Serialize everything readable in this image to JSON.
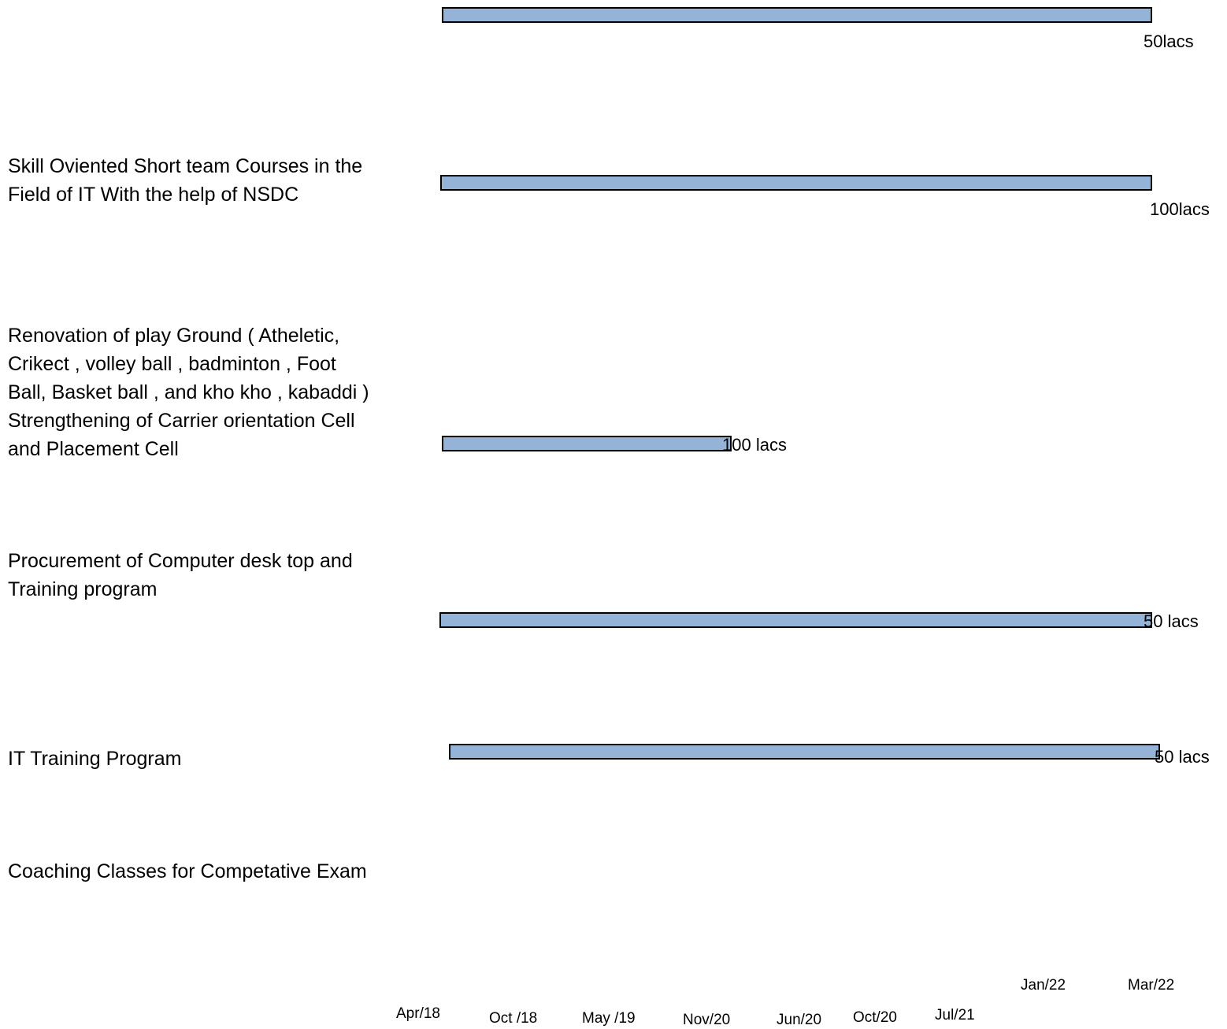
{
  "chart_data": {
    "type": "bar",
    "orientation": "horizontal",
    "title": "",
    "xlabel": "",
    "ylabel": "",
    "grid": false,
    "legend": "none",
    "bar_color": "#95b3d7",
    "bar_border_color": "#000000",
    "row_labels": [
      "",
      "Skill Oviented Short team Courses in the\nField of IT With the help of NSDC",
      "Renovation of play Ground ( Atheletic,\nCrikect , volley ball , badminton , Foot\nBall, Basket ball , and kho kho , kabaddi  )\nStrengthening of Carrier orientation Cell\nand Placement Cell",
      "Procurement of Computer desk top and\nTraining program",
      "IT Training Program",
      "Coaching Classes for Competative Exam"
    ],
    "tick_labels": [
      "Apr/18",
      "Oct /18",
      "May /19",
      "Nov/20",
      "Jun/20",
      "Oct/20",
      "Jul/21",
      "Jan/22",
      "Mar/22"
    ],
    "bars": [
      {
        "start": "Apr/18",
        "end": "Mar/22",
        "label": "50lacs"
      },
      {
        "start": "Apr/18",
        "end": "Mar/22",
        "label": "100lacs"
      },
      {
        "start": "Apr/18",
        "end": "Nov/20",
        "label": "100 lacs"
      },
      {
        "start": "Apr/18",
        "end": "Mar/22",
        "label": "50 lacs"
      },
      {
        "start": "Apr/18",
        "end": "Mar/22",
        "label": "50 lacs"
      }
    ]
  }
}
